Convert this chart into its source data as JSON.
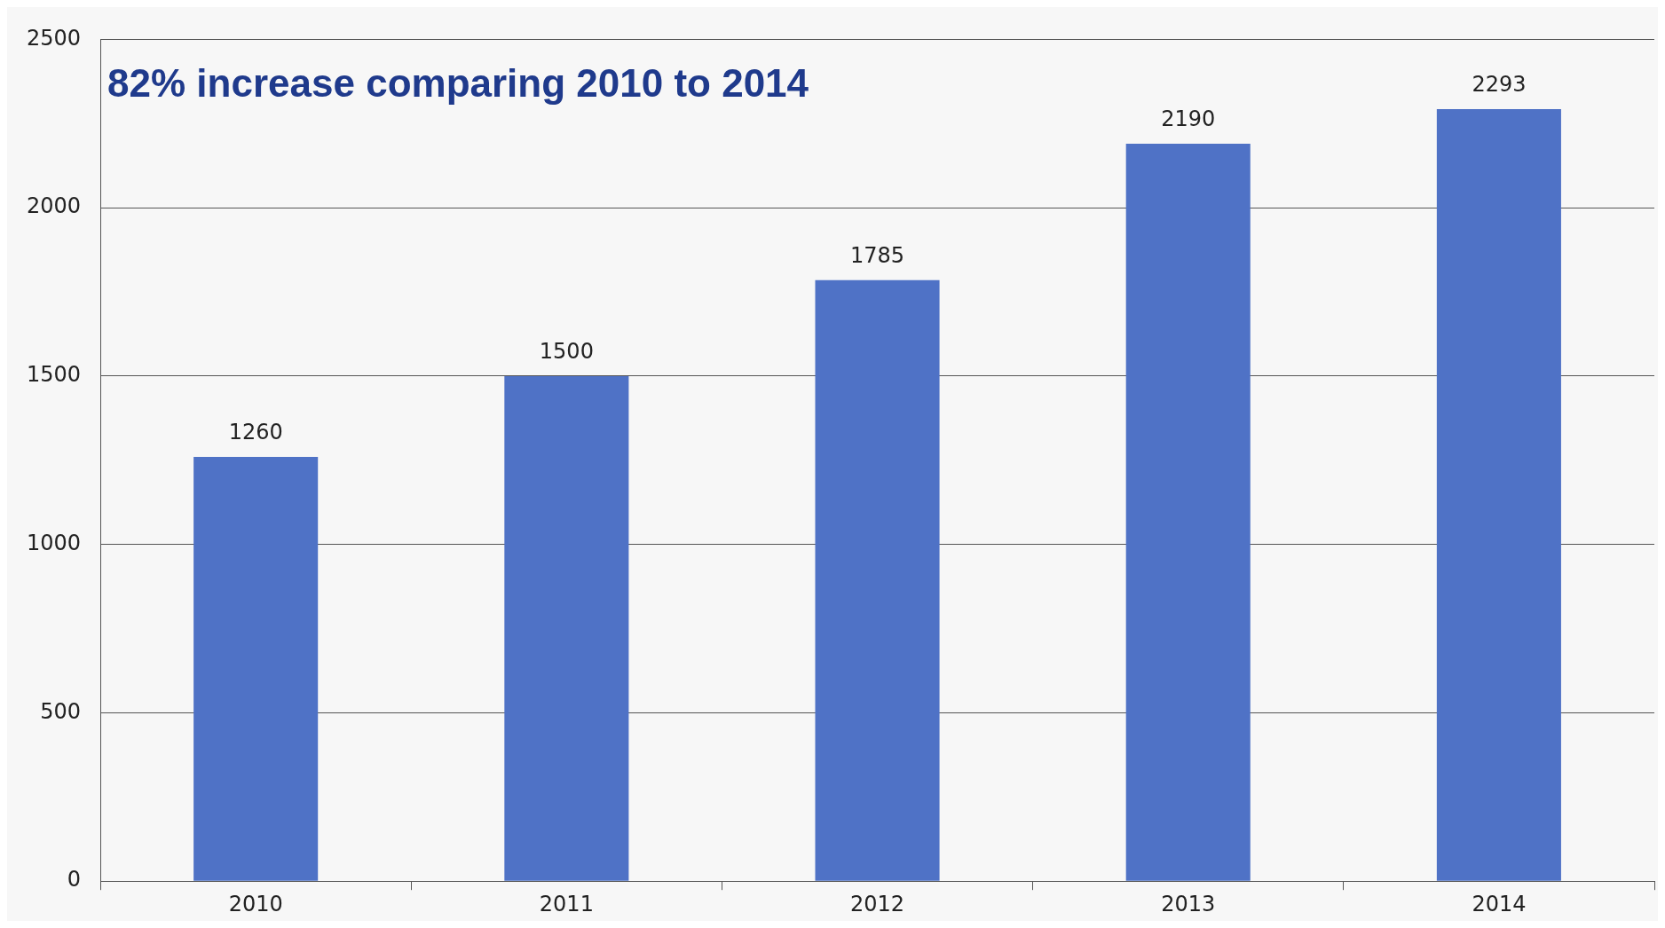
{
  "chart_data": {
    "type": "bar",
    "title": "82% increase comparing 2010 to 2014",
    "categories": [
      "2010",
      "2011",
      "2012",
      "2013",
      "2014"
    ],
    "values": [
      1260,
      1500,
      1785,
      2190,
      2293
    ],
    "color": "#4f72c6",
    "ylim": [
      0,
      2500
    ],
    "yticks": [
      0,
      500,
      1000,
      1500,
      2000,
      2500
    ],
    "grid": "y",
    "data_labels": true,
    "legend": false
  }
}
